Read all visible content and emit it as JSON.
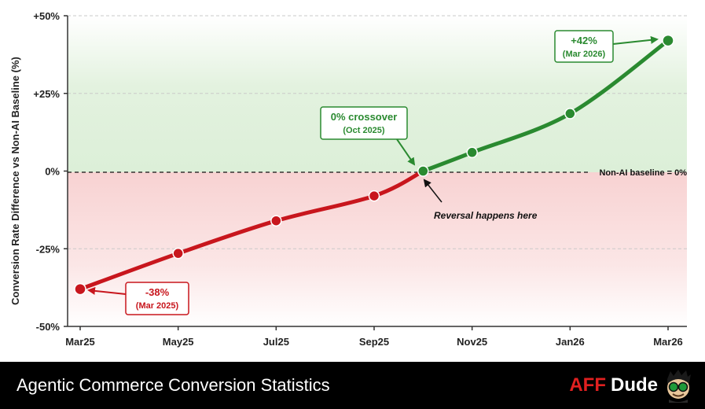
{
  "chart_data": {
    "type": "line",
    "title": "",
    "xlabel": "",
    "ylabel": "Conversion Rate Difference vs Non-AI Baseline (%)",
    "x_ticks": [
      "Mar25",
      "May25",
      "Jul25",
      "Sep25",
      "Nov25",
      "Jan26",
      "Mar26"
    ],
    "y_ticks": [
      "+50%",
      "+25%",
      "0%",
      "-25%",
      "-50%"
    ],
    "ylim": [
      -50,
      50
    ],
    "grid": "horizontal dashed",
    "points": [
      {
        "x": "2025-03",
        "y": -38
      },
      {
        "x": "2025-05",
        "y": -26.5
      },
      {
        "x": "2025-07",
        "y": -16
      },
      {
        "x": "2025-09",
        "y": -8
      },
      {
        "x": "2025-10",
        "y": 0
      },
      {
        "x": "2025-11",
        "y": 6
      },
      {
        "x": "2026-01",
        "y": 18.5
      },
      {
        "x": "2026-03",
        "y": 42
      }
    ],
    "colors": {
      "negative": "#c8161d",
      "positive": "#2a8a30",
      "negative_fill": "#f7d6d6",
      "positive_fill": "#dff0dc"
    },
    "baseline_label": "Non-AI baseline = 0%",
    "annotations": {
      "start": {
        "value": "-38%",
        "date": "(Mar 2025)"
      },
      "crossover": {
        "value": "0% crossover",
        "date": "(Oct 2025)"
      },
      "end": {
        "value": "+42%",
        "date": "(Mar 2026)"
      },
      "reversal_note": "Reversal happens here"
    }
  },
  "footer": {
    "title": "Agentic Commerce Conversion Statistics",
    "brand_part1": "AFF",
    "brand_part2": "Dude"
  }
}
